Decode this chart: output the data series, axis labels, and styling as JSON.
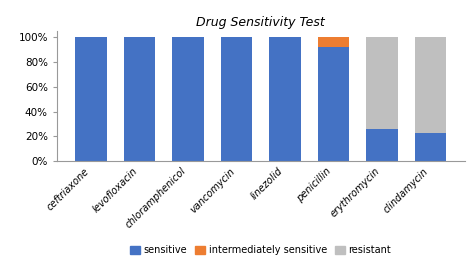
{
  "categories": [
    "ceftriaxone",
    "levofloxacin",
    "chloramphenicol",
    "vancomycin",
    "linezolid",
    "penicillin",
    "erythromycin",
    "clindamycin"
  ],
  "sensitive": [
    100,
    100,
    100,
    100,
    100,
    92,
    26,
    23
  ],
  "intermediately_sensitive": [
    0,
    0,
    0,
    0,
    0,
    8,
    0,
    0
  ],
  "resistant": [
    0,
    0,
    0,
    0,
    0,
    0,
    74,
    77
  ],
  "color_sensitive": "#4472C4",
  "color_intermediate": "#ED7D31",
  "color_resistant": "#BFBFBF",
  "title": "Drug Sensitivity Test",
  "ylabel_ticks": [
    "0%",
    "20%",
    "40%",
    "60%",
    "80%",
    "100%"
  ],
  "yticks": [
    0,
    20,
    40,
    60,
    80,
    100
  ],
  "ylim": [
    0,
    105
  ],
  "bar_width": 0.65,
  "legend_labels": [
    "sensitive",
    "intermediately sensitive",
    "resistant"
  ]
}
